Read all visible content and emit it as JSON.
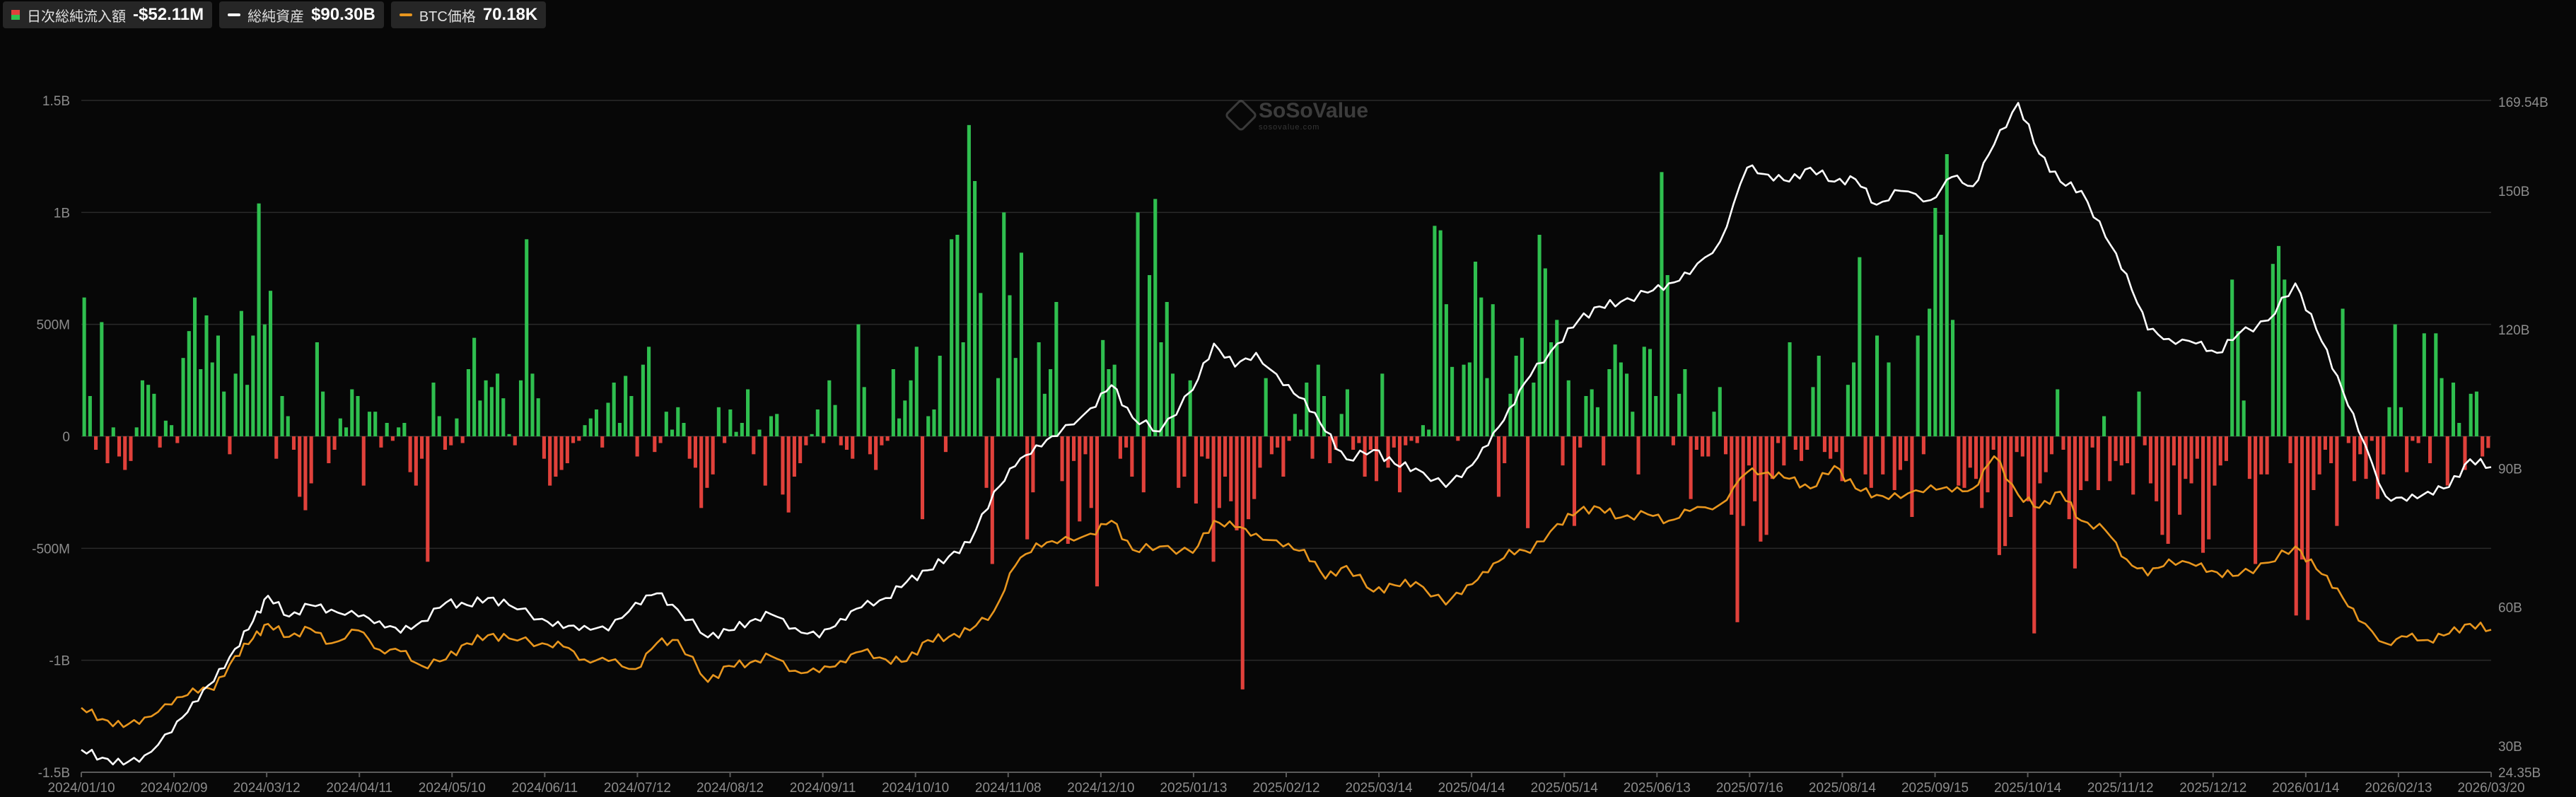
{
  "legend": [
    {
      "label": "日次総純流入額",
      "value": "-$52.11M",
      "icon": "bar-swatch-icon"
    },
    {
      "label": "総純資産",
      "value": "$90.30B",
      "icon": "white-line-icon"
    },
    {
      "label": "BTC価格",
      "value": "70.18K",
      "icon": "orange-line-icon"
    }
  ],
  "watermark": {
    "brand": "SoSoValue",
    "sub": "sosovalue.com"
  },
  "colors": {
    "background": "#070707",
    "inflow": "#2fbf4f",
    "outflow": "#e0413b",
    "assets": "#ffffff",
    "btc": "#e8961e",
    "grid": "#2a2a2a"
  },
  "chart_data": {
    "type": "bar",
    "x_tick_labels": [
      "2024/01/10",
      "2024/02/09",
      "2024/03/12",
      "2024/04/11",
      "2024/05/10",
      "2024/06/11",
      "2024/07/12",
      "2024/08/12",
      "2024/09/11",
      "2024/10/10",
      "2024/11/08",
      "2024/12/10",
      "2025/01/13",
      "2025/02/12",
      "2025/03/14",
      "2025/04/14",
      "2025/05/14",
      "2025/06/13",
      "2025/07/16",
      "2025/08/14",
      "2025/09/15",
      "2025/10/14",
      "2025/11/12",
      "2025/12/12",
      "2026/01/14",
      "2026/02/13",
      "2026/03/20"
    ],
    "y_left_ticks": [
      "1.5B",
      "1B",
      "500M",
      "0",
      "-500M",
      "-1B",
      "-1.5B"
    ],
    "y_left_range": [
      -1500,
      1500
    ],
    "y_left_unit": "M USD",
    "y_right_ticks": [
      "169.54B",
      "150B",
      "120B",
      "90B",
      "60B",
      "30B",
      "24.35B"
    ],
    "y_right_range_billion": [
      24.35,
      169.54
    ],
    "grid": true,
    "legend_position": "top-left",
    "series": [
      {
        "name": "日次総純流入額",
        "type": "bar",
        "color_positive": "#2fbf4f",
        "color_negative": "#e0413b",
        "values_million": [
          620,
          180,
          -60,
          510,
          -120,
          40,
          -90,
          -150,
          -110,
          40,
          250,
          230,
          190,
          -50,
          70,
          50,
          -30,
          350,
          470,
          620,
          300,
          540,
          330,
          450,
          200,
          -80,
          280,
          560,
          230,
          450,
          1040,
          500,
          650,
          -100,
          180,
          90,
          -60,
          -270,
          -330,
          -210,
          420,
          200,
          -120,
          -60,
          80,
          40,
          210,
          180,
          -220,
          110,
          110,
          -50,
          60,
          -20,
          40,
          60,
          -160,
          -220,
          -100,
          -560,
          240,
          90,
          -60,
          -40,
          80,
          -30,
          300,
          440,
          160,
          250,
          220,
          280,
          170,
          10,
          -40,
          250,
          880,
          280,
          170,
          -100,
          -220,
          -180,
          -150,
          -120,
          -30,
          -20,
          50,
          80,
          120,
          -50,
          150,
          240,
          60,
          270,
          180,
          -90,
          320,
          400,
          -70,
          -30,
          110,
          30,
          130,
          60,
          -100,
          -140,
          -320,
          -230,
          -170,
          130,
          -30,
          120,
          20,
          60,
          210,
          -80,
          30,
          -220,
          90,
          100,
          -260,
          -340,
          -180,
          -120,
          -40,
          10,
          120,
          -30,
          250,
          140,
          -40,
          -60,
          -100,
          500,
          220,
          -80,
          -150,
          -40,
          -20,
          300,
          80,
          160,
          250,
          400,
          -370,
          90,
          120,
          360,
          -70,
          880,
          900,
          420,
          1390,
          1140,
          640,
          -230,
          -570,
          260,
          1000,
          630,
          350,
          820,
          -460,
          -250,
          420,
          190,
          300,
          600,
          -200,
          -480,
          -110,
          -380,
          -80,
          -320,
          -670,
          430,
          300,
          320,
          -100,
          -50,
          -180,
          1000,
          -250,
          720,
          1060,
          420,
          600,
          280,
          -230,
          -180,
          250,
          -300,
          -90,
          -100,
          -560,
          -320,
          -180,
          -290,
          -420,
          -1130,
          -370,
          -280,
          -140,
          260,
          -80,
          -50,
          -180,
          -20,
          100,
          30,
          240,
          -100,
          320,
          180,
          -120,
          -60,
          100,
          210,
          -60,
          -30,
          -180,
          -60,
          -200,
          280,
          -140,
          -50,
          -250,
          -40,
          -20,
          -30,
          50,
          30,
          940,
          920,
          590,
          310,
          -20,
          320,
          330,
          780,
          620,
          260,
          590,
          -270,
          -120,
          190,
          360,
          440,
          -410,
          240,
          900,
          750,
          420,
          520,
          -130,
          250,
          -400,
          -50,
          180,
          210,
          130,
          -130,
          300,
          410,
          330,
          280,
          110,
          -170,
          400,
          390,
          180,
          1180,
          720,
          -40,
          190,
          300,
          -280,
          -60,
          -90,
          -90,
          110,
          220,
          -80,
          -350,
          -830,
          -400,
          -130,
          -290,
          -470,
          -440,
          -190,
          -30,
          -130,
          420,
          -60,
          -110,
          -60,
          220,
          360,
          -70,
          -100,
          -70,
          -200,
          230,
          330,
          800,
          -170,
          -230,
          450,
          -170,
          330,
          -240,
          -150,
          -110,
          -360,
          450,
          -80,
          570,
          1020,
          900,
          1260,
          520,
          -220,
          -230,
          -140,
          -190,
          -320,
          -250,
          -60,
          -530,
          -490,
          -360,
          -70,
          -90,
          -290,
          -880,
          -210,
          -160,
          -80,
          210,
          -60,
          -370,
          -590,
          -240,
          -200,
          -50,
          -240,
          90,
          -200,
          -110,
          -130,
          -120,
          -260,
          200,
          -40,
          -210,
          -290,
          -440,
          -480,
          -130,
          -350,
          -190,
          -210,
          -100,
          -520,
          -460,
          -220,
          -130,
          -110,
          700,
          470,
          160,
          -190,
          -570,
          -170,
          -170,
          770,
          850,
          700,
          -120,
          -800,
          -550,
          -820,
          -240,
          -170,
          -60,
          -120,
          -400,
          570,
          -30,
          -200,
          -80,
          -190,
          -20,
          -280,
          -170,
          130,
          500,
          130,
          -160,
          -20,
          -30,
          460,
          -120,
          460,
          260,
          -220,
          240,
          60,
          -150,
          190,
          200,
          -90,
          -52
        ]
      },
      {
        "name": "総純資産",
        "type": "line",
        "color": "#ffffff",
        "x_dates": [
          "2024-01-10",
          "2024-01-17",
          "2024-01-24",
          "2024-01-31",
          "2024-02-09",
          "2024-02-16",
          "2024-02-23",
          "2024-03-01",
          "2024-03-07",
          "2024-03-12",
          "2024-03-19",
          "2024-03-26",
          "2024-04-02",
          "2024-04-11",
          "2024-04-18",
          "2024-04-25",
          "2024-05-02",
          "2024-05-10",
          "2024-05-17",
          "2024-05-24",
          "2024-05-31",
          "2024-06-11",
          "2024-06-18",
          "2024-06-25",
          "2024-07-03",
          "2024-07-12",
          "2024-07-19",
          "2024-07-26",
          "2024-08-05",
          "2024-08-12",
          "2024-08-19",
          "2024-08-26",
          "2024-09-03",
          "2024-09-11",
          "2024-09-18",
          "2024-09-25",
          "2024-10-03",
          "2024-10-10",
          "2024-10-17",
          "2024-10-24",
          "2024-10-31",
          "2024-11-08",
          "2024-11-15",
          "2024-11-22",
          "2024-11-29",
          "2024-12-10",
          "2024-12-17",
          "2024-12-24",
          "2025-01-02",
          "2025-01-13",
          "2025-01-20",
          "2025-01-27",
          "2025-02-03",
          "2025-02-12",
          "2025-02-19",
          "2025-02-26",
          "2025-03-05",
          "2025-03-14",
          "2025-03-21",
          "2025-03-28",
          "2025-04-07",
          "2025-04-14",
          "2025-04-21",
          "2025-04-28",
          "2025-05-05",
          "2025-05-14",
          "2025-05-21",
          "2025-05-28",
          "2025-06-04",
          "2025-06-13",
          "2025-06-20",
          "2025-06-27",
          "2025-07-07",
          "2025-07-16",
          "2025-07-23",
          "2025-07-30",
          "2025-08-06",
          "2025-08-14",
          "2025-08-21",
          "2025-08-28",
          "2025-09-05",
          "2025-09-15",
          "2025-09-22",
          "2025-09-29",
          "2025-10-06",
          "2025-10-14",
          "2025-10-21",
          "2025-10-28",
          "2025-11-04",
          "2025-11-12",
          "2025-11-19",
          "2025-11-26",
          "2025-12-03",
          "2025-12-12",
          "2025-12-19",
          "2025-12-26",
          "2026-01-05",
          "2026-01-14",
          "2026-01-21",
          "2026-01-28",
          "2026-02-04",
          "2026-02-13",
          "2026-02-20",
          "2026-02-27",
          "2026-03-06",
          "2026-03-13",
          "2026-03-20"
        ],
        "values_billion": [
          29.2,
          27.5,
          26.0,
          28.0,
          33.0,
          39.5,
          44.0,
          51.0,
          57.0,
          62.5,
          58.0,
          60.5,
          59.5,
          58.0,
          57.0,
          54.5,
          57.0,
          61.0,
          60.5,
          62.0,
          60.5,
          57.5,
          55.5,
          56.0,
          55.0,
          61.0,
          63.0,
          59.5,
          53.5,
          55.0,
          57.0,
          58.5,
          55.5,
          53.5,
          57.5,
          60.0,
          62.0,
          65.5,
          68.0,
          71.0,
          74.0,
          85.0,
          90.5,
          95.0,
          97.0,
          103.0,
          108.0,
          101.0,
          98.0,
          107.0,
          117.0,
          112.0,
          115.0,
          108.0,
          105.0,
          98.0,
          92.0,
          94.0,
          91.0,
          90.0,
          86.0,
          90.0,
          95.0,
          103.0,
          110.0,
          117.0,
          122.0,
          125.0,
          126.0,
          128.0,
          130.0,
          132.0,
          139.0,
          155.0,
          153.5,
          152.0,
          155.0,
          152.0,
          152.5,
          147.0,
          150.0,
          148.0,
          153.0,
          151.0,
          160.0,
          169.0,
          158.0,
          152.0,
          150.0,
          140.0,
          132.0,
          120.0,
          118.0,
          117.0,
          115.0,
          119.0,
          122.0,
          130.0,
          120.0,
          110.0,
          98.0,
          84.0,
          83.0,
          85.0,
          86.0,
          92.0,
          90.3
        ]
      },
      {
        "name": "BTC価格",
        "type": "line",
        "color": "#e8961e",
        "x_dates": [
          "2024-01-10",
          "2024-01-17",
          "2024-01-24",
          "2024-01-31",
          "2024-02-09",
          "2024-02-16",
          "2024-02-23",
          "2024-03-01",
          "2024-03-07",
          "2024-03-12",
          "2024-03-19",
          "2024-03-26",
          "2024-04-02",
          "2024-04-11",
          "2024-04-18",
          "2024-04-25",
          "2024-05-02",
          "2024-05-10",
          "2024-05-17",
          "2024-05-24",
          "2024-05-31",
          "2024-06-11",
          "2024-06-18",
          "2024-06-25",
          "2024-07-03",
          "2024-07-12",
          "2024-07-19",
          "2024-07-26",
          "2024-08-05",
          "2024-08-12",
          "2024-08-19",
          "2024-08-26",
          "2024-09-03",
          "2024-09-11",
          "2024-09-18",
          "2024-09-25",
          "2024-10-03",
          "2024-10-10",
          "2024-10-17",
          "2024-10-24",
          "2024-10-31",
          "2024-11-08",
          "2024-11-15",
          "2024-11-22",
          "2024-11-29",
          "2024-12-10",
          "2024-12-17",
          "2024-12-24",
          "2025-01-02",
          "2025-01-13",
          "2025-01-20",
          "2025-01-27",
          "2025-02-03",
          "2025-02-12",
          "2025-02-19",
          "2025-02-26",
          "2025-03-05",
          "2025-03-14",
          "2025-03-21",
          "2025-03-28",
          "2025-04-07",
          "2025-04-14",
          "2025-04-21",
          "2025-04-28",
          "2025-05-05",
          "2025-05-14",
          "2025-05-21",
          "2025-05-28",
          "2025-06-04",
          "2025-06-13",
          "2025-06-20",
          "2025-06-27",
          "2025-07-07",
          "2025-07-16",
          "2025-07-23",
          "2025-07-30",
          "2025-08-06",
          "2025-08-14",
          "2025-08-21",
          "2025-08-28",
          "2025-09-05",
          "2025-09-15",
          "2025-09-22",
          "2025-09-29",
          "2025-10-06",
          "2025-10-14",
          "2025-10-21",
          "2025-10-28",
          "2025-11-04",
          "2025-11-12",
          "2025-11-19",
          "2025-11-26",
          "2025-12-03",
          "2025-12-12",
          "2025-12-19",
          "2025-12-26",
          "2026-01-05",
          "2026-01-14",
          "2026-01-21",
          "2026-01-28",
          "2026-02-04",
          "2026-02-13",
          "2026-02-20",
          "2026-02-27",
          "2026-03-06",
          "2026-03-13",
          "2026-03-20"
        ],
        "values_k": [
          46.0,
          42.5,
          40.0,
          43.0,
          47.0,
          52.0,
          51.5,
          62.0,
          67.5,
          72.0,
          68.0,
          70.5,
          66.0,
          70.0,
          64.0,
          63.5,
          59.0,
          61.0,
          66.0,
          68.5,
          67.5,
          66.0,
          65.0,
          61.0,
          60.5,
          58.0,
          66.0,
          67.0,
          54.0,
          59.0,
          60.0,
          62.0,
          57.5,
          57.0,
          60.5,
          63.5,
          61.0,
          60.5,
          67.0,
          68.0,
          70.0,
          76.0,
          90.0,
          97.0,
          97.0,
          100.0,
          104.0,
          95.0,
          96.0,
          94.0,
          104.0,
          102.0,
          100.0,
          96.0,
          95.0,
          86.0,
          90.0,
          82.0,
          84.0,
          85.0,
          78.0,
          84.0,
          88.0,
          95.0,
          94.0,
          103.0,
          107.0,
          108.0,
          105.0,
          106.0,
          104.0,
          107.0,
          109.0,
          119.0,
          119.0,
          117.0,
          114.0,
          121.0,
          114.0,
          112.0,
          111.0,
          115.0,
          113.0,
          114.0,
          124.0,
          112.0,
          108.0,
          113.0,
          104.0,
          101.0,
          92.0,
          87.0,
          92.0,
          90.0,
          88.0,
          87.0,
          91.0,
          96.0,
          89.0,
          83.0,
          73.0,
          66.0,
          68.0,
          67.0,
          69.0,
          72.0,
          70.18
        ]
      }
    ]
  }
}
